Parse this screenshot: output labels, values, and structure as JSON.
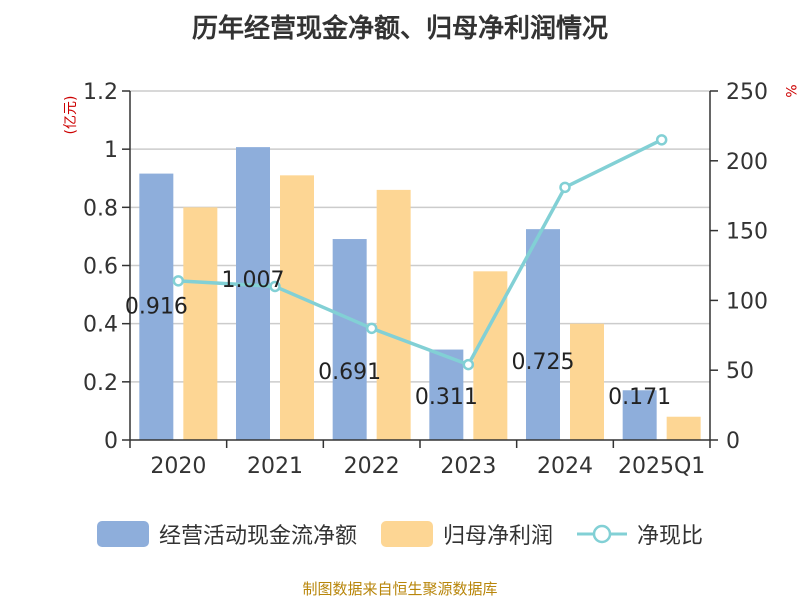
{
  "chart_data": {
    "type": "bar",
    "title": "历年经营现金净额、归母净利润情况",
    "categories": [
      "2020",
      "2021",
      "2022",
      "2023",
      "2024",
      "2025Q1"
    ],
    "series": [
      {
        "name": "经营活动现金流净额",
        "type": "bar",
        "axis": "left",
        "color": "#8eaedb",
        "values": [
          0.916,
          1.007,
          0.691,
          0.311,
          0.725,
          0.171
        ],
        "labels": [
          "0.916",
          "1.007",
          "0.691",
          "0.311",
          "0.725",
          "0.171"
        ]
      },
      {
        "name": "归母净利润",
        "type": "bar",
        "axis": "left",
        "color": "#fdd694",
        "values": [
          0.8,
          0.91,
          0.86,
          0.58,
          0.4,
          0.08
        ]
      },
      {
        "name": "净现比",
        "type": "line",
        "axis": "right",
        "color": "#82d0d5",
        "values": [
          114,
          110,
          80,
          54,
          181,
          215
        ]
      }
    ],
    "ylabel_left": "(亿元)",
    "ylabel_right": "%",
    "ylim_left": [
      0,
      1.2
    ],
    "yticks_left": [
      "0",
      "0.2",
      "0.4",
      "0.6",
      "0.8",
      "1",
      "1.2"
    ],
    "ylim_right": [
      0,
      250
    ],
    "yticks_right": [
      "0",
      "50",
      "100",
      "150",
      "200",
      "250"
    ],
    "grid": true,
    "legend": "bottom"
  },
  "source": "制图数据来自恒生聚源数据库"
}
